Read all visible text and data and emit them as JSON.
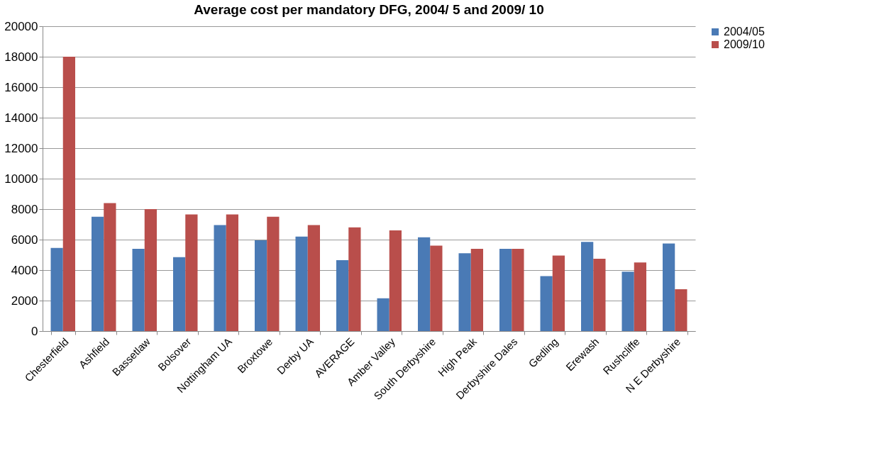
{
  "chart_data": {
    "type": "bar",
    "title": "Average cost per mandatory DFG, 2004/ 5 and 2009/ 10",
    "categories": [
      "Chesterfield",
      "Ashfield",
      "Bassetlaw",
      "Bolsover",
      "Nottingham UA",
      "Broxtowe",
      "Derby UA",
      "AVERAGE",
      "Amber Valley",
      "South Derbyshire",
      "High Peak",
      "Derbyshire Dales",
      "Gedling",
      "Erewash",
      "Rushcliffe",
      "N E Derbyshire"
    ],
    "series": [
      {
        "name": "2004/05",
        "color": "#4a7ab5",
        "values": [
          5450,
          7500,
          5400,
          4850,
          6950,
          5950,
          6200,
          4650,
          2150,
          6150,
          5100,
          5400,
          3600,
          5850,
          3900,
          5750
        ]
      },
      {
        "name": "2009/10",
        "color": "#b94e4b",
        "values": [
          18000,
          8400,
          8000,
          7650,
          7650,
          7500,
          6950,
          6800,
          6600,
          5600,
          5400,
          5400,
          4950,
          4750,
          4500,
          2750
        ]
      }
    ],
    "ylim": [
      0,
      20000
    ],
    "yticks": [
      0,
      2000,
      4000,
      6000,
      8000,
      10000,
      12000,
      14000,
      16000,
      18000,
      20000
    ],
    "grid": "y",
    "legend": "right"
  }
}
